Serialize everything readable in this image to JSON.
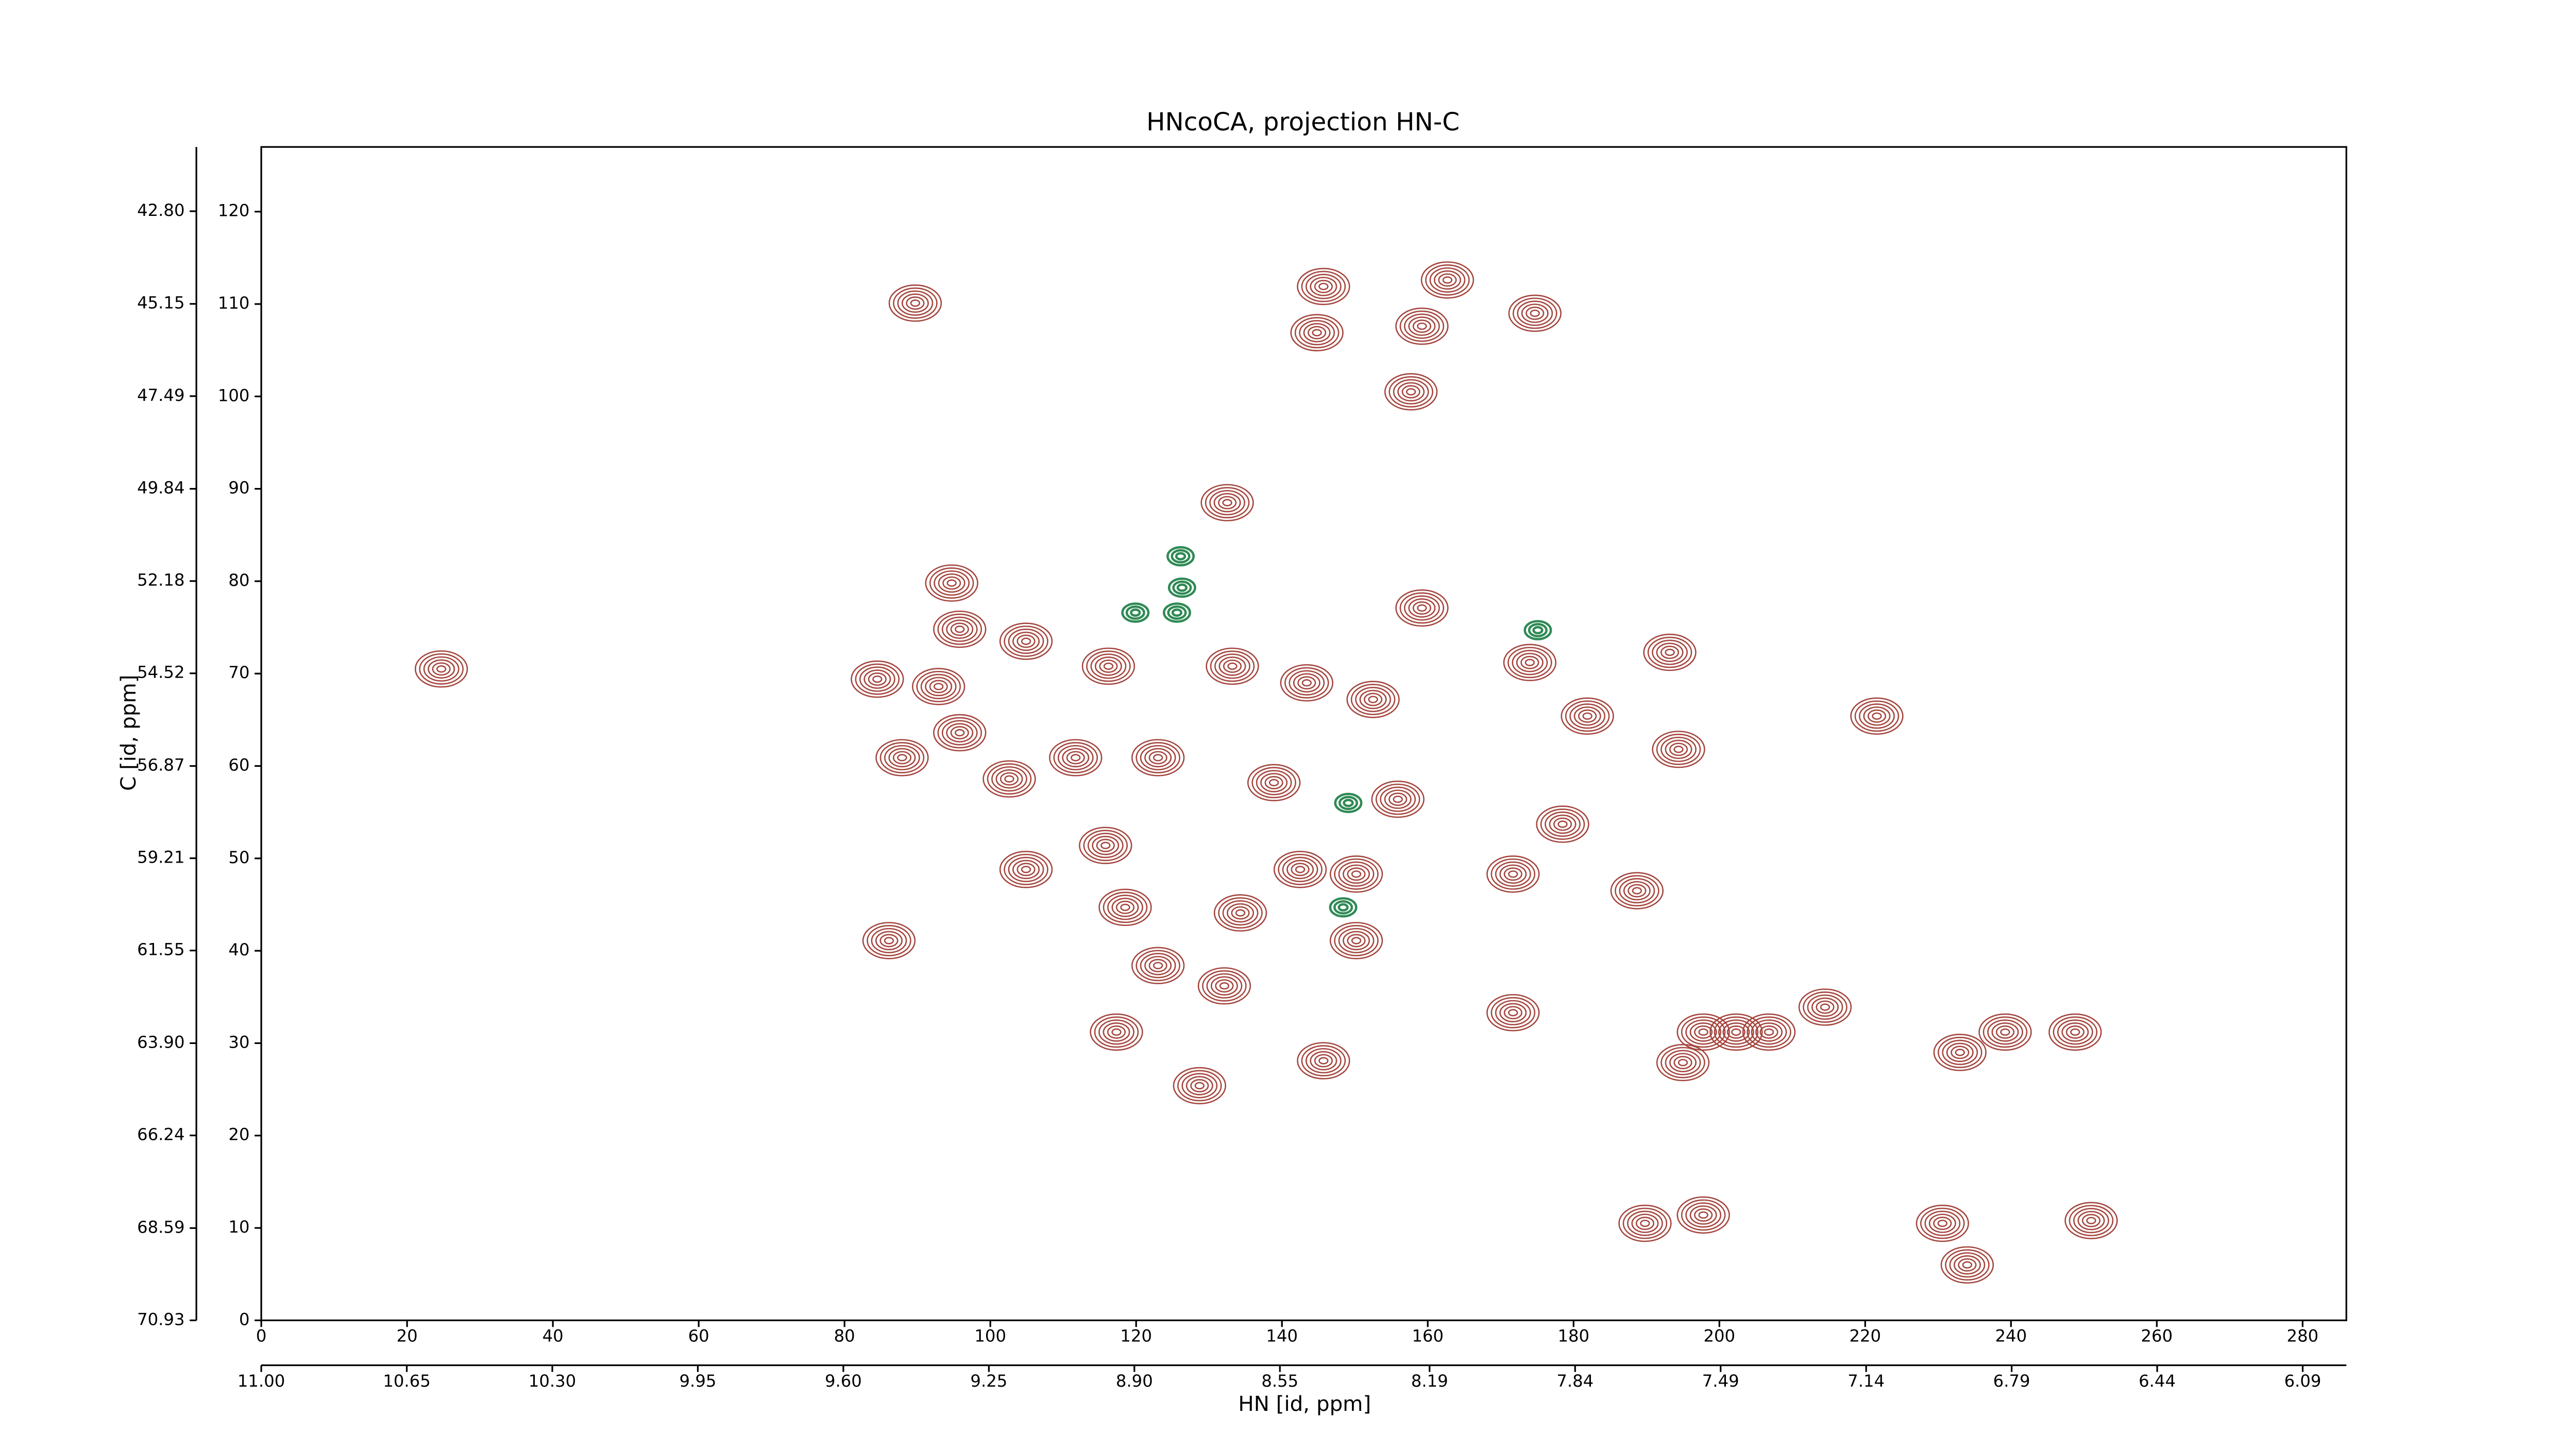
{
  "chart_data": {
    "type": "contour",
    "title": "HNcoCA, projection HN-C",
    "xlabel": "HN [id, ppm]",
    "ylabel": "C [id, ppm]",
    "xlim": [
      0,
      286
    ],
    "ylim": [
      0,
      127
    ],
    "xticks": [
      0,
      20,
      40,
      60,
      80,
      100,
      120,
      140,
      160,
      180,
      200,
      220,
      240,
      260,
      280
    ],
    "yticks": [
      0,
      10,
      20,
      30,
      40,
      50,
      60,
      70,
      80,
      90,
      100,
      110,
      120
    ],
    "x2lim": [
      11.0,
      5.985
    ],
    "x2ticks": [
      {
        "value": 11.0,
        "label": "11.00"
      },
      {
        "value": 10.65,
        "label": "10.65"
      },
      {
        "value": 10.3,
        "label": "10.30"
      },
      {
        "value": 9.95,
        "label": "9.95"
      },
      {
        "value": 9.6,
        "label": "9.60"
      },
      {
        "value": 9.25,
        "label": "9.25"
      },
      {
        "value": 8.9,
        "label": "8.90"
      },
      {
        "value": 8.55,
        "label": "8.55"
      },
      {
        "value": 8.19,
        "label": "8.19"
      },
      {
        "value": 7.84,
        "label": "7.84"
      },
      {
        "value": 7.49,
        "label": "7.49"
      },
      {
        "value": 7.14,
        "label": "7.14"
      },
      {
        "value": 6.79,
        "label": "6.79"
      },
      {
        "value": 6.44,
        "label": "6.44"
      },
      {
        "value": 6.09,
        "label": "6.09"
      }
    ],
    "y2lim": [
      70.93,
      41.17
    ],
    "y2ticks": [
      {
        "value": 70.93,
        "label": "70.93"
      },
      {
        "value": 68.59,
        "label": "68.59"
      },
      {
        "value": 66.24,
        "label": "66.24"
      },
      {
        "value": 63.9,
        "label": "63.90"
      },
      {
        "value": 61.55,
        "label": "61.55"
      },
      {
        "value": 59.21,
        "label": "59.21"
      },
      {
        "value": 56.87,
        "label": "56.87"
      },
      {
        "value": 54.52,
        "label": "54.52"
      },
      {
        "value": 52.18,
        "label": "52.18"
      },
      {
        "value": 49.84,
        "label": "49.84"
      },
      {
        "value": 47.49,
        "label": "47.49"
      },
      {
        "value": 45.15,
        "label": "45.15"
      },
      {
        "value": 42.8,
        "label": "42.80"
      }
    ],
    "series": [
      {
        "color": "#a4463e",
        "x": [
          89.7,
          145.7,
          162.7,
          174.7,
          144.8,
          159.2,
          157.7,
          132.5,
          24.7,
          94.7,
          95.8,
          104.9,
          84.5,
          92.9,
          95.8,
          87.9,
          102.6,
          111.7,
          123.0,
          116.2,
          133.2,
          143.4,
          152.5,
          159.2,
          174.0,
          181.9,
          193.2,
          194.4,
          138.9,
          155.9,
          178.5,
          188.7,
          171.7,
          142.5,
          150.2,
          104.9,
          115.8,
          118.5,
          134.3,
          86.1,
          150.2,
          123.0,
          132.1,
          117.3,
          128.7,
          145.7,
          171.7,
          197.8,
          202.3,
          206.8,
          195.0,
          214.5,
          233.0,
          239.2,
          248.8,
          189.8,
          197.8,
          230.6,
          234.0,
          251.0,
          221.6
        ],
        "y": [
          110.1,
          111.9,
          112.6,
          109.0,
          106.9,
          107.6,
          100.5,
          88.5,
          70.5,
          79.8,
          74.8,
          73.5,
          69.4,
          68.6,
          63.6,
          60.9,
          58.6,
          60.9,
          60.9,
          70.8,
          70.8,
          69.0,
          67.2,
          77.1,
          71.2,
          65.4,
          72.3,
          61.8,
          58.2,
          56.4,
          53.7,
          46.5,
          48.3,
          48.8,
          48.3,
          48.8,
          51.4,
          44.7,
          44.1,
          41.1,
          41.1,
          38.4,
          36.2,
          31.2,
          25.4,
          28.1,
          33.3,
          31.2,
          31.2,
          31.2,
          27.9,
          33.9,
          29.0,
          31.2,
          31.2,
          10.5,
          11.4,
          10.5,
          6.0,
          10.8,
          65.4
        ]
      },
      {
        "color": "#2f8a55",
        "x": [
          125.6,
          119.9,
          149.1,
          175.1,
          126.1,
          148.4,
          126.3
        ],
        "y": [
          76.6,
          76.6,
          56.0,
          74.7,
          82.7,
          44.7,
          79.3
        ]
      }
    ]
  }
}
